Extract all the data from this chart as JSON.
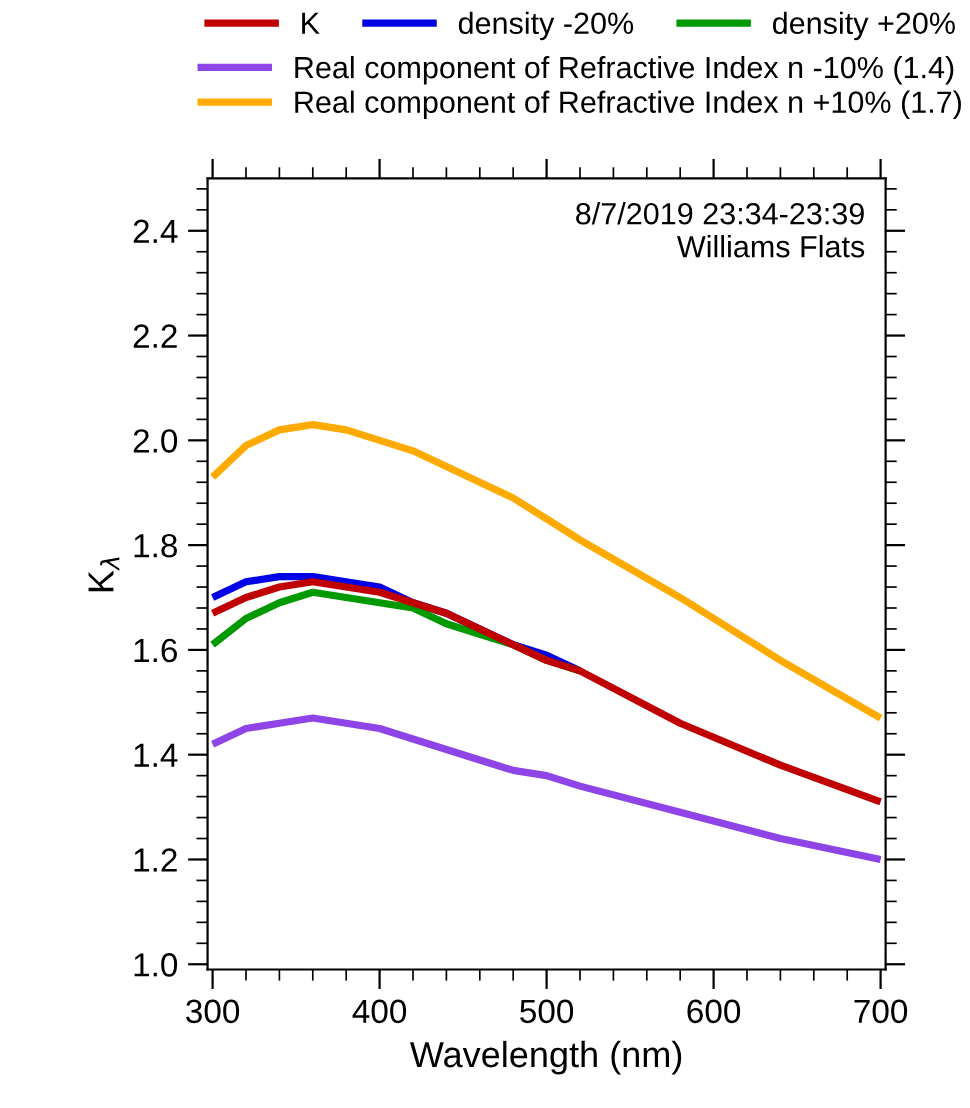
{
  "chart_data": {
    "type": "line",
    "xlabel": "Wavelength (nm)",
    "ylabel": "K$_{λ}$",
    "annotations": [
      "8/7/2019 23:34-23:39\nWilliams Flats"
    ],
    "x": [
      300,
      320,
      340,
      360,
      380,
      400,
      420,
      440,
      460,
      480,
      500,
      520,
      580,
      640,
      700
    ],
    "series": [
      {
        "name": "K",
        "color": "#c00000",
        "values": [
          1.67,
          1.7,
          1.72,
          1.73,
          1.72,
          1.71,
          1.69,
          1.67,
          1.64,
          1.61,
          1.58,
          1.56,
          1.46,
          1.38,
          1.31
        ]
      },
      {
        "name": "density -20%",
        "color": "#0000e6",
        "values": [
          1.7,
          1.73,
          1.74,
          1.74,
          1.73,
          1.72,
          1.69,
          1.67,
          1.64,
          1.61,
          1.59,
          1.56,
          null,
          null,
          null
        ]
      },
      {
        "name": "density +20%",
        "color": "#009900",
        "values": [
          1.61,
          1.66,
          1.69,
          1.71,
          1.7,
          1.69,
          1.68,
          1.65,
          1.63,
          1.61,
          1.58,
          1.56,
          null,
          null,
          null
        ]
      },
      {
        "name": "Real component of Refractive Index n -10% (1.4)",
        "color": "#8e44e6",
        "values": [
          1.42,
          1.45,
          1.46,
          1.47,
          1.46,
          1.45,
          1.43,
          1.41,
          1.39,
          1.37,
          1.36,
          1.34,
          1.29,
          1.24,
          1.2
        ]
      },
      {
        "name": "Real component of Refractive Index n +10% (1.7)",
        "color": "#ffaa00",
        "values": [
          1.93,
          1.99,
          2.02,
          2.03,
          2.02,
          2.0,
          1.98,
          1.95,
          1.92,
          1.89,
          1.85,
          1.81,
          1.7,
          1.58,
          1.47
        ]
      }
    ],
    "xlim": [
      297,
      703
    ],
    "ylim": [
      0.99,
      2.5
    ],
    "xticks": [
      300,
      400,
      500,
      600,
      700
    ],
    "yticks": [
      {
        "value": 1.0,
        "label": "1.0"
      },
      {
        "value": 1.2,
        "label": "1.2"
      },
      {
        "value": 1.4,
        "label": "1.4"
      },
      {
        "value": 1.6,
        "label": "1.6"
      },
      {
        "value": 1.8,
        "label": "1.8"
      },
      {
        "value": 2.0,
        "label": "2.0"
      },
      {
        "value": 2.2,
        "label": "2.2"
      },
      {
        "value": 2.4,
        "label": "2.4"
      }
    ],
    "grid": false,
    "legend": "top",
    "marker": "none",
    "line_style": "solid"
  }
}
